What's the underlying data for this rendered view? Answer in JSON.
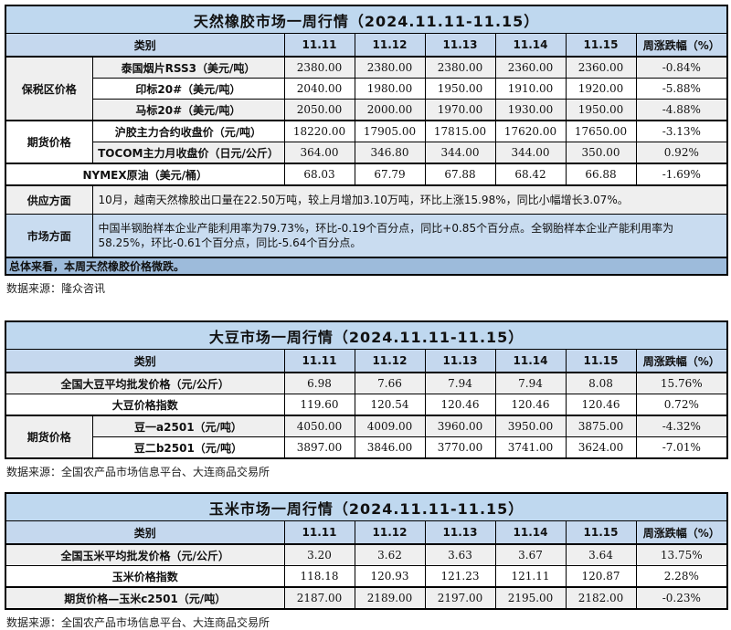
{
  "colors": {
    "title_bar": "#BFD8EF",
    "header_row": "#C5D8EE",
    "row_shaded": "#EFEFEF",
    "note_highlight": "#C9DCF0",
    "summary_bar": "#9DBBDB",
    "border": "#000000"
  },
  "tables": [
    {
      "title": "天然橡胶市场一周行情（2024.11.11-11.15）",
      "header": {
        "category": "类别",
        "dates": [
          "11.11",
          "11.12",
          "11.13",
          "11.14",
          "11.15"
        ],
        "change_label": "周涨跌幅（%）"
      },
      "rows": [
        {
          "group": "保税区价格",
          "label": "泰国烟片RSS3（美元/吨）",
          "values": [
            "2380.00",
            "2380.00",
            "2380.00",
            "2360.00",
            "2360.00"
          ],
          "change": "-0.84%"
        },
        {
          "label": "印标20#（美元/吨）",
          "values": [
            "2040.00",
            "1980.00",
            "1950.00",
            "1910.00",
            "1920.00"
          ],
          "change": "-5.88%"
        },
        {
          "label": "马标20#（美元/吨）",
          "values": [
            "2050.00",
            "2000.00",
            "1970.00",
            "1930.00",
            "1950.00"
          ],
          "change": "-4.88%"
        },
        {
          "group": "期货价格",
          "label": "沪胶主力合约收盘价（元/吨）",
          "values": [
            "18220.00",
            "17905.00",
            "17815.00",
            "17620.00",
            "17650.00"
          ],
          "change": "-3.13%"
        },
        {
          "label": "TOCOM主力月收盘价（日元/公斤）",
          "values": [
            "364.00",
            "346.80",
            "344.00",
            "344.00",
            "350.00"
          ],
          "change": "0.92%"
        },
        {
          "label": "NYMEX原油（美元/桶）",
          "values": [
            "68.03",
            "67.79",
            "67.88",
            "68.42",
            "66.88"
          ],
          "change": "-1.69%"
        }
      ],
      "notes": [
        {
          "label": "供应方面",
          "text": "10月，越南天然橡胶出口量在22.50万吨，较上月增加3.10万吨，环比上涨15.98%，同比小幅增长3.07%。"
        },
        {
          "label": "市场方面",
          "text": "中国半钢胎样本企业产能利用率为79.73%，环比-0.19个百分点，同比+0.85个百分点。全钢胎样本企业产能利用率为58.25%，环比-0.61个百分点，同比-5.64个百分点。"
        }
      ],
      "summary": "总体来看，本周天然橡胶价格微跌。",
      "source": "数据来源：隆众咨讯"
    },
    {
      "title": "大豆市场一周行情（2024.11.11-11.15）",
      "header": {
        "category": "类别",
        "dates": [
          "11.11",
          "11.12",
          "11.13",
          "11.14",
          "11.15"
        ],
        "change_label": "周涨跌幅（%）"
      },
      "rows": [
        {
          "label": "全国大豆平均批发价格（元/公斤）",
          "values": [
            "6.98",
            "7.66",
            "7.94",
            "7.94",
            "8.08"
          ],
          "change": "15.76%"
        },
        {
          "label": "大豆价格指数",
          "values": [
            "119.60",
            "120.54",
            "120.46",
            "120.46",
            "120.46"
          ],
          "change": "0.72%"
        },
        {
          "group": "期货价格",
          "label": "豆一a2501（元/吨）",
          "values": [
            "4050.00",
            "4009.00",
            "3960.00",
            "3950.00",
            "3875.00"
          ],
          "change": "-4.32%"
        },
        {
          "label": "豆二b2501（元/吨）",
          "values": [
            "3897.00",
            "3846.00",
            "3770.00",
            "3741.00",
            "3624.00"
          ],
          "change": "-7.01%"
        }
      ],
      "source": "数据来源：全国农产品市场信息平台、大连商品交易所"
    },
    {
      "title": "玉米市场一周行情（2024.11.11-11.15）",
      "header": {
        "category": "类别",
        "dates": [
          "11.11",
          "11.12",
          "11.13",
          "11.14",
          "11.15"
        ],
        "change_label": "周涨跌幅（%）"
      },
      "rows": [
        {
          "label": "全国玉米平均批发价格（元/公斤）",
          "values": [
            "3.20",
            "3.62",
            "3.63",
            "3.67",
            "3.64"
          ],
          "change": "13.75%"
        },
        {
          "label": "玉米价格指数",
          "values": [
            "118.18",
            "120.93",
            "121.23",
            "121.11",
            "120.87"
          ],
          "change": "2.28%"
        },
        {
          "label": "期货价格—玉米c2501（元/吨）",
          "values": [
            "2187.00",
            "2189.00",
            "2197.00",
            "2195.00",
            "2182.00"
          ],
          "change": "-0.23%"
        }
      ],
      "source": "数据来源：全国农产品市场信息平台、大连商品交易所"
    }
  ]
}
